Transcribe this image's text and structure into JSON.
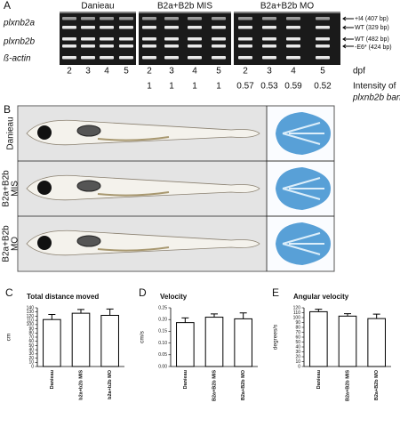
{
  "panel_a": {
    "letter": "A",
    "groups": [
      "Danieau",
      "B2a+B2b MIS",
      "B2a+B2b MO"
    ],
    "rows": [
      "plxnb2a",
      "plxnb2b",
      "ß-actin"
    ],
    "band_labels": [
      "+I4 (407 bp)",
      "WT (329 bp)",
      "WT (482 bp)",
      "-E6* (424 bp)"
    ],
    "dpf": [
      2,
      3,
      4,
      5,
      2,
      3,
      4,
      5,
      2,
      3,
      4,
      5
    ],
    "dpf_label": "dpf",
    "intensity": [
      1,
      1,
      1,
      1,
      0.57,
      0.53,
      0.59,
      0.52
    ],
    "intensity_label": [
      "Intensity of",
      "plxnb2b band"
    ]
  },
  "panel_b": {
    "letter": "B",
    "rows": [
      [
        "Danieau"
      ],
      [
        "B2a+B2b",
        "MIS"
      ],
      [
        "B2a+B2b",
        "MO"
      ]
    ]
  },
  "chart_data": [
    {
      "type": "bar",
      "letter": "C",
      "title": "Total distance moved",
      "y_label": "cm",
      "categories": [
        "Danieau",
        "b2a+b2b MIS",
        "b2a+b2b MO"
      ],
      "values": [
        112,
        127,
        122
      ],
      "errors": [
        12,
        9,
        15
      ],
      "color": "#ffffff",
      "ylim": [
        0,
        140
      ],
      "yticks": [
        0,
        10,
        20,
        30,
        40,
        50,
        60,
        70,
        80,
        90,
        100,
        110,
        120,
        130,
        140
      ]
    },
    {
      "type": "bar",
      "letter": "D",
      "title": "Velocity",
      "y_label": "cm/s",
      "categories": [
        "Danieau",
        "B2a+B2b MIS",
        "B2a+B2b MO"
      ],
      "values": [
        0.187,
        0.21,
        0.203
      ],
      "errors": [
        0.02,
        0.014,
        0.025
      ],
      "color": "#ffffff",
      "ylim": [
        0,
        0.25
      ],
      "yticks": [
        {
          "value": 0,
          "label": "0.00"
        },
        0.05,
        {
          "value": 0.1,
          "label": "0.10"
        },
        0.15,
        {
          "value": 0.2,
          "label": "0.20"
        },
        0.25
      ]
    },
    {
      "type": "bar",
      "letter": "E",
      "title": "Angular velocity",
      "y_label": "degrees/s",
      "categories": [
        "Danieau",
        "B2a+B2b MIS",
        "B2a+B2b MO"
      ],
      "values": [
        112,
        103,
        98
      ],
      "errors": [
        5,
        5,
        9
      ],
      "color": "#ffffff",
      "ylim": [
        0,
        120
      ],
      "yticks": [
        0,
        10,
        20,
        30,
        40,
        50,
        60,
        70,
        80,
        90,
        100,
        110,
        120
      ]
    }
  ]
}
